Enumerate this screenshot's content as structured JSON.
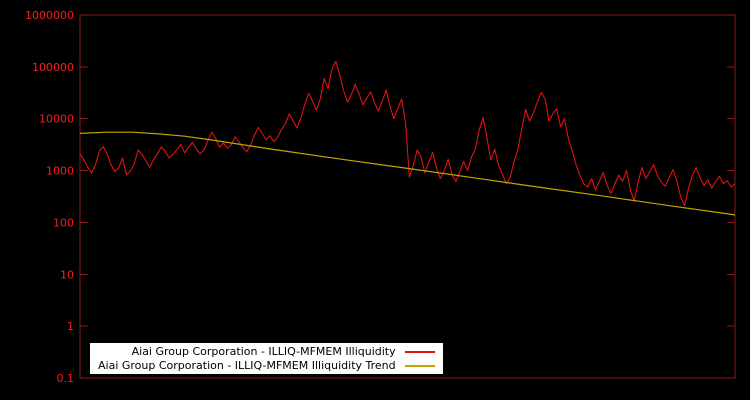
{
  "axis": {
    "labels": [
      "1000000",
      "100000",
      "10000",
      "1000",
      "100",
      "10",
      "1",
      "0.1"
    ],
    "color": "#ff1a1a",
    "border_color": "#8b1a1a"
  },
  "legend": {
    "background": "#ffffff",
    "text_color": "#000000",
    "entries": [
      {
        "label": "Aiai Group Corporation - ILLIQ-MFMEM Illiquidity",
        "color": "#e01212"
      },
      {
        "label": "Aiai Group Corporation - ILLIQ-MFMEM Illiquidity Trend",
        "color": "#c2a500"
      }
    ]
  },
  "chart_data": {
    "type": "line",
    "title": "",
    "xlabel": "",
    "ylabel": "",
    "yscale": "log",
    "ylim": [
      0.1,
      1000000
    ],
    "grid": false,
    "legend_position": "bottom-center",
    "y_ticks": [
      1000000,
      100000,
      10000,
      1000,
      100,
      10,
      1,
      0.1
    ],
    "series": [
      {
        "name": "Aiai Group Corporation - ILLIQ-MFMEM Illiquidity",
        "color": "#e01212",
        "values": [
          2100,
          1600,
          1150,
          900,
          1300,
          2400,
          2900,
          2100,
          1300,
          950,
          1150,
          1750,
          820,
          980,
          1350,
          2500,
          2050,
          1550,
          1150,
          1650,
          2150,
          2850,
          2350,
          1750,
          2050,
          2500,
          3200,
          2200,
          2800,
          3500,
          2600,
          2100,
          2500,
          3800,
          5500,
          4200,
          2800,
          3400,
          2700,
          3100,
          4500,
          3600,
          2800,
          2300,
          3100,
          4800,
          6800,
          5200,
          3900,
          4700,
          3600,
          4400,
          6200,
          8000,
          12500,
          9000,
          6600,
          10500,
          19000,
          31000,
          22000,
          14500,
          24000,
          60000,
          38000,
          90000,
          128000,
          70000,
          35000,
          21000,
          29000,
          46000,
          30000,
          18500,
          25000,
          33000,
          20000,
          14000,
          22000,
          36000,
          17000,
          10000,
          16000,
          24000,
          8000,
          750,
          1250,
          2500,
          1800,
          900,
          1450,
          2250,
          1100,
          700,
          1000,
          1650,
          820,
          620,
          950,
          1500,
          1000,
          1800,
          2600,
          6000,
          10500,
          4200,
          1600,
          2600,
          1250,
          850,
          550,
          750,
          1500,
          2600,
          6500,
          15000,
          9000,
          13000,
          21000,
          32000,
          24000,
          9000,
          12500,
          15500,
          7000,
          10000,
          4200,
          2400,
          1300,
          800,
          550,
          480,
          700,
          420,
          620,
          920,
          520,
          360,
          560,
          820,
          620,
          1000,
          420,
          260,
          600,
          1150,
          700,
          950,
          1300,
          800,
          600,
          500,
          720,
          1050,
          620,
          310,
          210,
          460,
          820,
          1150,
          720,
          520,
          660,
          460,
          610,
          780,
          560,
          640,
          480,
          560
        ]
      },
      {
        "name": "Aiai Group Corporation - ILLIQ-MFMEM Illiquidity Trend",
        "color": "#c2a500",
        "points": [
          [
            0.0,
            5200
          ],
          [
            0.04,
            5500
          ],
          [
            0.08,
            5500
          ],
          [
            0.12,
            5100
          ],
          [
            0.16,
            4600
          ],
          [
            0.2,
            3900
          ],
          [
            0.3,
            2500
          ],
          [
            0.4,
            1650
          ],
          [
            0.5,
            1100
          ],
          [
            0.6,
            730
          ],
          [
            0.7,
            480
          ],
          [
            0.8,
            320
          ],
          [
            0.9,
            210
          ],
          [
            1.0,
            140
          ]
        ]
      }
    ]
  }
}
